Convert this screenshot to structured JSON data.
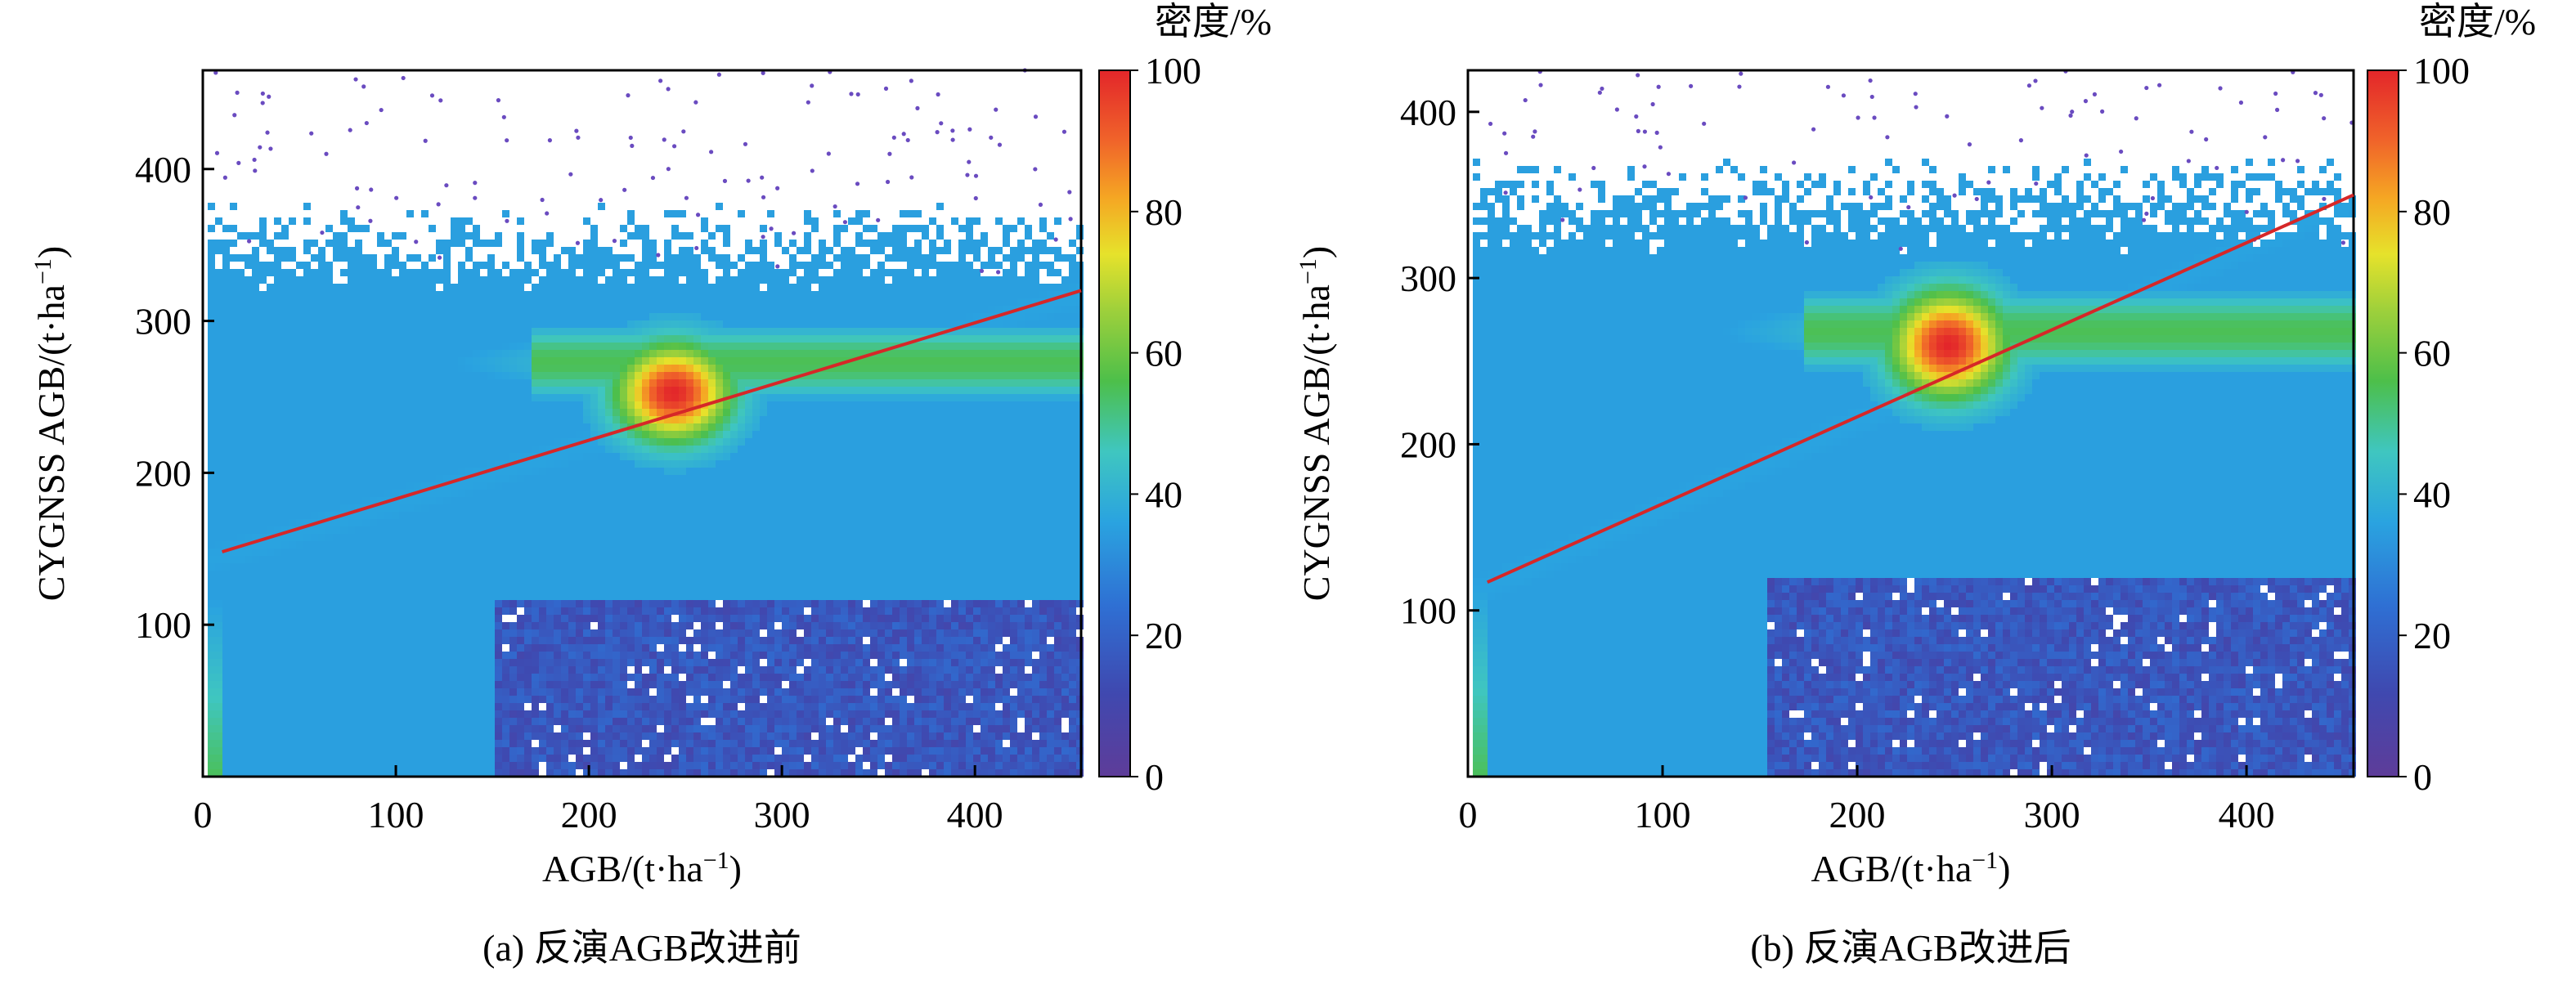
{
  "chart_data": [
    {
      "type": "scatter",
      "subtitle": "(a) 反演AGB改进前",
      "xlabel_main": "AGB/(t·ha",
      "ylabel_main": "CYGNSS AGB/(t·ha",
      "unit_sup": "−1",
      "unit_close": ")",
      "xlim": [
        0,
        455
      ],
      "ylim": [
        0,
        465
      ],
      "x_ticks": [
        0,
        100,
        200,
        300,
        400
      ],
      "y_ticks": [
        100,
        200,
        300,
        400
      ],
      "grid": false,
      "colorbar": {
        "title": "密度/%",
        "ticks": [
          0,
          20,
          40,
          60,
          80,
          100
        ]
      },
      "fit_line": {
        "x": [
          10,
          455
        ],
        "y": [
          148,
          320
        ],
        "color": "#d62728"
      },
      "density_peak": {
        "x": 242,
        "y": 255
      },
      "plateau_y": 300,
      "band_y": 72
    },
    {
      "type": "scatter",
      "subtitle": "(b) 反演AGB改进后",
      "xlabel_main": "AGB/(t·ha",
      "ylabel_main": "CYGNSS AGB/(t·ha",
      "unit_sup": "−1",
      "unit_close": ")",
      "xlim": [
        0,
        455
      ],
      "ylim": [
        0,
        425
      ],
      "x_ticks": [
        0,
        100,
        200,
        300,
        400
      ],
      "y_ticks": [
        100,
        200,
        300,
        400
      ],
      "grid": false,
      "colorbar": {
        "title": "密度/%",
        "ticks": [
          0,
          20,
          40,
          60,
          80,
          100
        ]
      },
      "fit_line": {
        "x": [
          10,
          455
        ],
        "y": [
          117,
          350
        ],
        "color": "#d62728"
      },
      "density_peak": {
        "x": 245,
        "y": 262
      },
      "plateau_y": 295,
      "band_y": 72
    }
  ]
}
